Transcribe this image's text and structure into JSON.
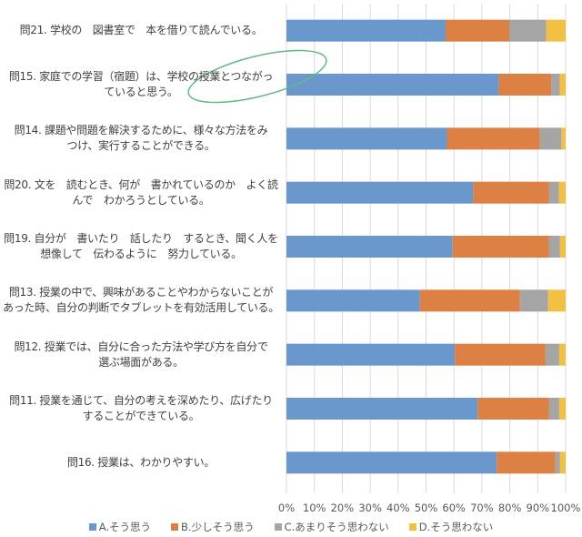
{
  "chart_data": {
    "type": "bar",
    "orientation": "horizontal",
    "stacked": "percent",
    "title": "",
    "xlabel": "",
    "ylabel": "",
    "xlim": [
      0,
      100
    ],
    "grid": true,
    "legend_position": "bottom",
    "x_tick_labels": [
      "0%",
      "10%",
      "20%",
      "30%",
      "40%",
      "50%",
      "60%",
      "70%",
      "80%",
      "90%",
      "100%"
    ],
    "categories": [
      [
        "問21. 学校の　図書室で　本を借りて読んでいる。"
      ],
      [
        "問15. 家庭での学習（宿題）は、学校の授業とつながっ",
        "ていると思う。"
      ],
      [
        "問14. 課題や問題を解決するために、様々な方法をみ",
        "つけ、実行することができる。"
      ],
      [
        "問20. 文を　読むとき、何が　書かれているのか　よく読",
        "んで　わかろうとしている。"
      ],
      [
        "問19. 自分が　書いたり　話したり　するとき、聞く人を",
        "想像して　伝わるように　努力している。"
      ],
      [
        "問13. 授業の中で、興味があることやわからないことが",
        "あった時、自分の判断でタブレットを有効活用している。"
      ],
      [
        "問12. 授業では、自分に合った方法や学び方を自分で",
        "選ぶ場面がある。"
      ],
      [
        "問11. 授業を通じて、自分の考えを深めたり、広げたり",
        "することができている。"
      ],
      [
        "問16. 授業は、わかりやすい。"
      ]
    ],
    "series": [
      {
        "name": "A.そう思う",
        "color": "#6A98CD",
        "values": [
          57.0,
          76.1,
          57.5,
          66.9,
          59.5,
          47.8,
          60.3,
          68.5,
          75.3
        ]
      },
      {
        "name": "B.少しそう思う",
        "color": "#DD8043",
        "values": [
          22.8,
          18.7,
          33.2,
          27.2,
          34.6,
          35.8,
          32.5,
          25.6,
          21.0
        ]
      },
      {
        "name": "C.あまりそう思わない",
        "color": "#A5A5A5",
        "values": [
          13.3,
          3.1,
          7.8,
          3.5,
          3.9,
          10.1,
          4.9,
          3.6,
          1.7
        ]
      },
      {
        "name": "D.そう思わない",
        "color": "#F2C142",
        "values": [
          6.9,
          2.1,
          1.5,
          2.4,
          2.0,
          6.3,
          2.3,
          2.3,
          2.0
        ]
      }
    ],
    "annotation_color": "#5DBB7E"
  }
}
